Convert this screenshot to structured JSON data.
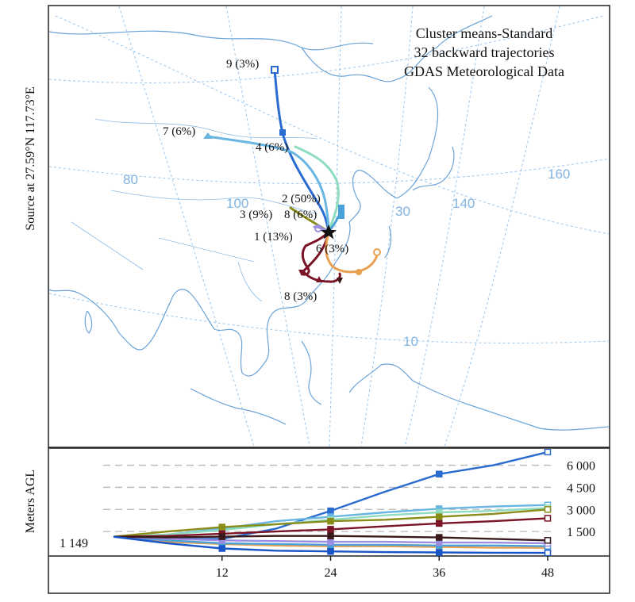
{
  "title_lines": [
    "Cluster means-Standard",
    "32 backward trajectories",
    "GDAS Meteorological Data"
  ],
  "source_label": "Source at 27.59°N 117.73°E",
  "map_grid_labels": [
    "80",
    "100",
    "30",
    "140",
    "160",
    "10"
  ],
  "cluster_labels": [
    "9 (3%)",
    "7 (6%)",
    "4 (6%)",
    "2 (50%)",
    "3 (9%)",
    "8 (6%)",
    "1 (13%)",
    "6 (3%)",
    "8 (3%)"
  ],
  "colors": {
    "map": "#6aa3d8",
    "c1": "#7a1426",
    "c2": "#4aa0d8",
    "c3": "#8a8c18",
    "c4": "#2a6bd0",
    "c6": "#e8a050",
    "c7": "#6ab6e2",
    "c8a": "#3a1a1a",
    "c8b": "#9b8ee0",
    "c9": "#2a6bd0",
    "c_green": "#90dcc0"
  },
  "chart_data": {
    "type": "line",
    "title": "",
    "xlabel": "",
    "ylabel": "Meters AGL",
    "start_height_label": "1 149",
    "x": [
      0,
      6,
      12,
      18,
      24,
      30,
      36,
      42,
      48
    ],
    "x_tick_labels": [
      "12",
      "24",
      "36",
      "48"
    ],
    "y_tick_labels": [
      "6 000",
      "4 500",
      "3 000",
      "1 500"
    ],
    "y_gridlines": [
      6000,
      4500,
      3000,
      1500
    ],
    "ylim": [
      0,
      7000
    ],
    "series": [
      {
        "cluster": "9",
        "color": "#2a6bd0",
        "values": [
          1149,
          1000,
          1000,
          1700,
          2900,
          4200,
          5400,
          6000,
          6900
        ]
      },
      {
        "cluster": "7",
        "color": "#6ab6e2",
        "values": [
          1149,
          1300,
          1700,
          2200,
          2500,
          2800,
          3050,
          3200,
          3300
        ]
      },
      {
        "cluster": "4",
        "color": "#90dcc0",
        "values": [
          1149,
          1300,
          1600,
          2000,
          2300,
          2600,
          2800,
          2900,
          3100
        ]
      },
      {
        "cluster": "3",
        "color": "#8a8c18",
        "values": [
          1149,
          1500,
          1800,
          2000,
          2200,
          2300,
          2500,
          2700,
          3000
        ]
      },
      {
        "cluster": "1",
        "color": "#7a1426",
        "values": [
          1149,
          1200,
          1350,
          1500,
          1650,
          1850,
          2050,
          2200,
          2400
        ]
      },
      {
        "cluster": "6",
        "color": "#e8a050",
        "values": [
          1149,
          800,
          650,
          550,
          500,
          500,
          450,
          400,
          400
        ]
      },
      {
        "cluster": "2",
        "color": "#4aa0d8",
        "values": [
          1149,
          900,
          700,
          650,
          600,
          600,
          550,
          550,
          500
        ]
      },
      {
        "cluster": "8",
        "color": "#9b8ee0",
        "values": [
          1149,
          1000,
          900,
          850,
          800,
          800,
          750,
          750,
          700
        ]
      },
      {
        "cluster": "8b",
        "color": "#3a1a1a",
        "values": [
          1149,
          1100,
          1150,
          1200,
          1200,
          1150,
          1100,
          1000,
          900
        ]
      },
      {
        "cluster": "blue-low",
        "color": "#1a55c8",
        "values": [
          1149,
          700,
          350,
          200,
          150,
          100,
          80,
          60,
          50
        ]
      }
    ]
  }
}
